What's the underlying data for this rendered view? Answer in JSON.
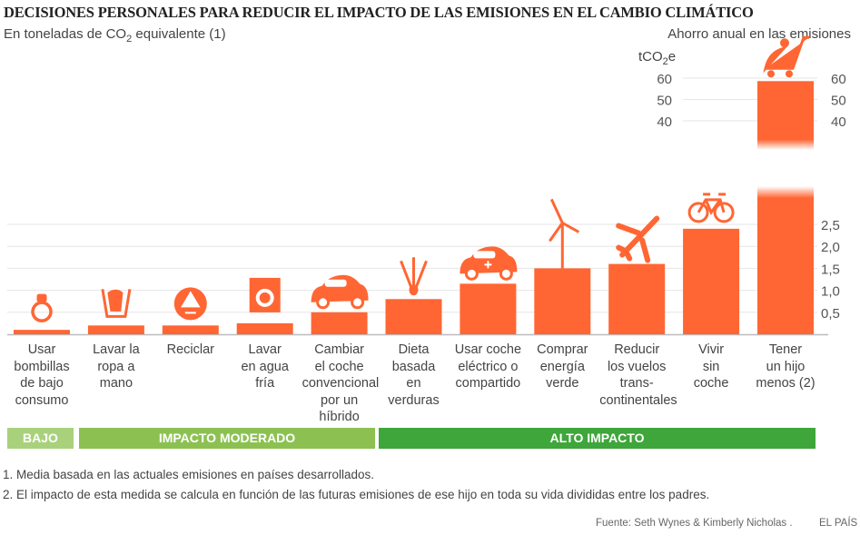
{
  "title": "DECISIONES PERSONALES PARA REDUCIR EL IMPACTO DE LAS EMISIONES EN EL CAMBIO CLIMÁTICO",
  "subtitle": {
    "pre": "En toneladas de CO",
    "sub": "2",
    "post": " equivalente (1)"
  },
  "right_title": "Ahorro anual en las emisiones",
  "unit": {
    "pre": "tCO",
    "sub": "2",
    "post": "e"
  },
  "chart_data": {
    "type": "bar",
    "ylabel": "tCO2e",
    "axis_break": true,
    "lower_ylim": [
      0,
      2.5
    ],
    "upper_ylim": [
      40,
      60
    ],
    "lower_ticks": [
      "0,5",
      "1,0",
      "1,5",
      "2,0",
      "2,5"
    ],
    "upper_ticks": [
      "60",
      "50",
      "40"
    ],
    "bar_color": "#ff6633",
    "grid": true,
    "categories": [
      "Usar\nbombillas\nde bajo\nconsumo",
      "Lavar la\nropa a\nmano",
      "Reciclar",
      "Lavar\nen agua\nfría",
      "Cambiar\nel coche\nconvencional\npor un híbrido",
      "Dieta\nbasada\nen\nverduras",
      "Usar coche\neléctrico o\ncompartido",
      "Comprar\nenergía\nverde",
      "Reducir\nlos vuelos\ntrans-\ncontinentales",
      "Vivir\nsin\ncoche",
      "Tener\nun hijo\nmenos (2)"
    ],
    "values": [
      0.1,
      0.2,
      0.2,
      0.25,
      0.5,
      0.8,
      1.15,
      1.5,
      1.6,
      2.4,
      58.6
    ],
    "icons": [
      "lightbulb-icon",
      "handwash-icon",
      "recycle-icon",
      "washing-machine-icon",
      "car-icon",
      "vegetables-icon",
      "electric-car-icon",
      "wind-turbine-icon",
      "airplane-icon",
      "bicycle-icon",
      "stroller-icon"
    ]
  },
  "impact_bands": [
    {
      "label": "BAJO",
      "color": "#a9d17b"
    },
    {
      "label": "IMPACTO MODERADO",
      "color": "#8cc152"
    },
    {
      "label": "ALTO IMPACTO",
      "color": "#3ea63a"
    }
  ],
  "notes": [
    "1. Media basada en las actuales emisiones en países desarrollados.",
    "2. El impacto de esta medida se calcula en función de las futuras emisiones de ese hijo en toda su vida divididas entre los padres."
  ],
  "source": "Fuente: Seth Wynes & Kimberly Nicholas .",
  "brand": "EL PAÍS"
}
